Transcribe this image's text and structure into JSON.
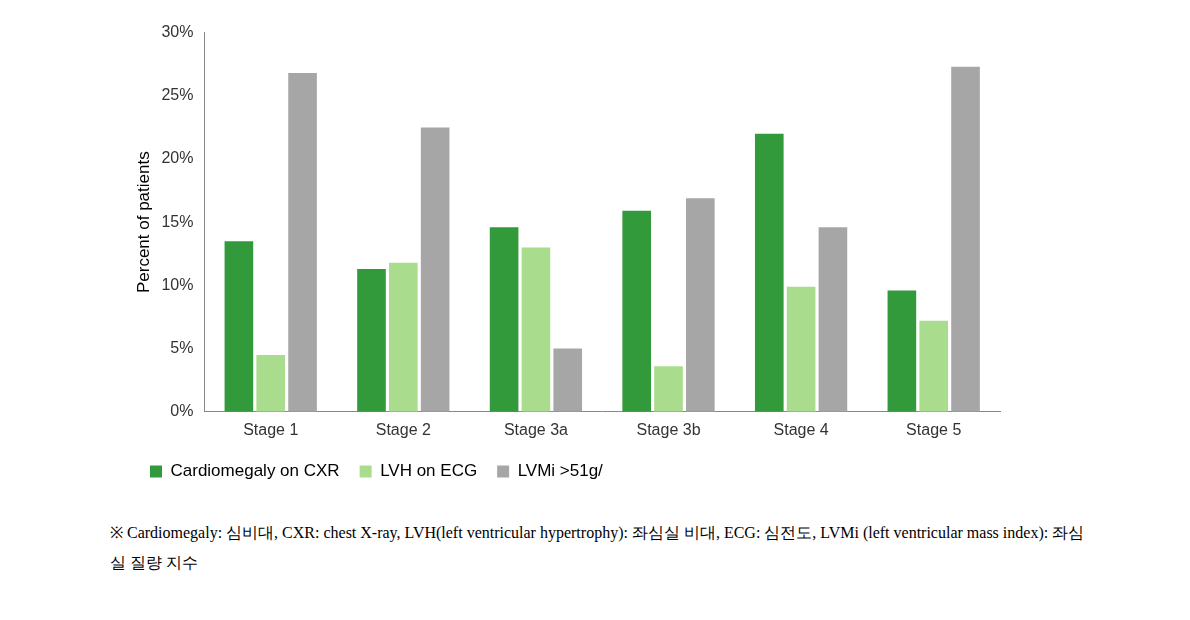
{
  "chart_data": {
    "type": "bar",
    "y_label": "Percent of patients",
    "categories": [
      "Stage 1",
      "Stage 2",
      "Stage 3a",
      "Stage 3b",
      "Stage 4",
      "Stage 5"
    ],
    "series": [
      {
        "name": "Cardiomegaly on CXR",
        "color": "#339a3c",
        "values": [
          13.5,
          11.3,
          14.6,
          15.9,
          22.0,
          9.6
        ]
      },
      {
        "name": "LVH on ECG",
        "color": "#a9dc8c",
        "values": [
          4.5,
          11.8,
          13.0,
          3.6,
          9.9,
          7.2
        ]
      },
      {
        "name": "LVMi >51g/",
        "color": "#a6a6a6",
        "values": [
          26.8,
          22.5,
          5.0,
          16.9,
          14.6,
          27.3
        ]
      }
    ],
    "ylim": [
      0,
      30
    ],
    "yticks": [
      {
        "value": 0,
        "label": "0%"
      },
      {
        "value": 5,
        "label": "5%"
      },
      {
        "value": 10,
        "label": "10%"
      },
      {
        "value": 15,
        "label": "15%"
      },
      {
        "value": 20,
        "label": "20%"
      },
      {
        "value": 25,
        "label": "25%"
      },
      {
        "value": 30,
        "label": "30%"
      }
    ],
    "grid": false,
    "legend": "bottom",
    "annotations": [
      "※ Cardiomegaly: 심비대, CXR: chest X-ray, LVH(left ventricular hypertrophy): 좌심실 비대, ECG: 심전도, LVMi (left ventricular mass index): 좌심실 질량 지수"
    ]
  }
}
